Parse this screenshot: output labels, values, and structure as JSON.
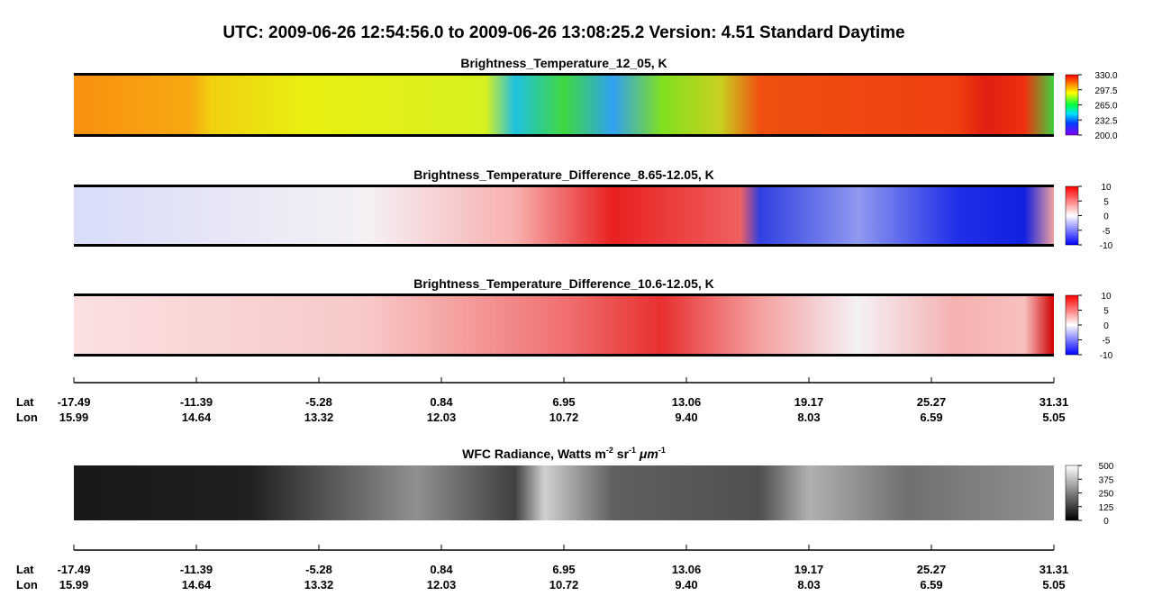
{
  "title": "UTC:  2009-06-26   12:54:56.0  to  2009-06-26   13:08:25.2    Version: 4.51  Standard Daytime",
  "panels": [
    {
      "title": "Brightness_Temperature_12_05, K",
      "lim": [
        200,
        330
      ],
      "ticks": [
        {
          "value": 330,
          "label": "330.0"
        },
        {
          "value": 297.5,
          "label": "297.5"
        },
        {
          "value": 265,
          "label": "265.0"
        },
        {
          "value": 232.5,
          "label": "232.5"
        },
        {
          "value": 200,
          "label": "200.0"
        }
      ]
    },
    {
      "title": "Brightness_Temperature_Difference_8.65-12.05, K",
      "lim": [
        -10,
        10
      ],
      "ticks": [
        10,
        5,
        0,
        -5,
        -10
      ]
    },
    {
      "title": "Brightness_Temperature_Difference_10.6-12.05, K",
      "lim": [
        -10,
        10
      ],
      "ticks": [
        10,
        5,
        0,
        -5,
        -10
      ]
    },
    {
      "title_parts": [
        "WFC Radiance, Watts m",
        "-2",
        " sr",
        "-1",
        " μm",
        "-1"
      ],
      "lim": [
        0,
        500
      ],
      "ticks": [
        500,
        375,
        250,
        125,
        0
      ]
    }
  ],
  "axes": [
    {
      "lat_label": "Lat",
      "lon_label": "Lon",
      "lat": [
        "-17.49",
        "-11.39",
        "-5.28",
        "0.84",
        "6.95",
        "13.06",
        "19.17",
        "25.27",
        "31.31"
      ],
      "lon": [
        "15.99",
        "14.64",
        "13.32",
        "12.03",
        "10.72",
        "9.40",
        "8.03",
        "6.59",
        "5.05"
      ]
    },
    {
      "lat_label": "Lat",
      "lon_label": "Lon",
      "lat": [
        "-17.49",
        "-11.39",
        "-5.28",
        "0.84",
        "6.95",
        "13.06",
        "19.17",
        "25.27",
        "31.31"
      ],
      "lon": [
        "15.99",
        "14.64",
        "13.32",
        "12.03",
        "10.72",
        "9.40",
        "8.03",
        "6.59",
        "5.05"
      ]
    }
  ]
}
